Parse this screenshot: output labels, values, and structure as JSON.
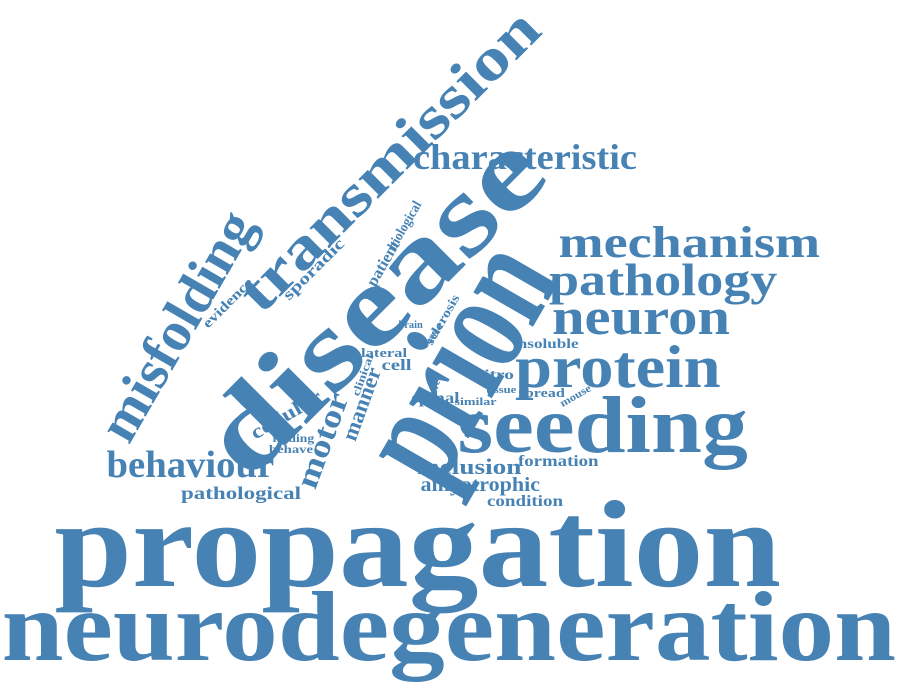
{
  "word_color": "#4682B4",
  "words": [
    {
      "id": "neurodegeneration",
      "text": "neurodegeneration"
    },
    {
      "id": "propagation",
      "text": "propagation"
    },
    {
      "id": "prion",
      "text": "prion"
    },
    {
      "id": "disease",
      "text": "disease"
    },
    {
      "id": "transmission",
      "text": "transmission"
    },
    {
      "id": "seeding",
      "text": "seeding"
    },
    {
      "id": "protein",
      "text": "protein"
    },
    {
      "id": "neuron",
      "text": "neuron"
    },
    {
      "id": "pathology",
      "text": "pathology"
    },
    {
      "id": "mechanism",
      "text": "mechanism"
    },
    {
      "id": "characteristic",
      "text": "characteristic"
    },
    {
      "id": "misfolding",
      "text": "misfolding"
    },
    {
      "id": "behaviour",
      "text": "behaviour"
    },
    {
      "id": "motor",
      "text": "motor"
    },
    {
      "id": "pathological",
      "text": "pathological"
    },
    {
      "id": "inclusion",
      "text": "inclusion"
    },
    {
      "id": "amyotrophic",
      "text": "amyotrophic"
    },
    {
      "id": "formation",
      "text": "formation"
    },
    {
      "id": "condition",
      "text": "condition"
    },
    {
      "id": "manner",
      "text": "manner"
    },
    {
      "id": "cellular",
      "text": "cellular"
    },
    {
      "id": "finding",
      "text": "finding"
    },
    {
      "id": "behave",
      "text": "behave"
    },
    {
      "id": "spinal",
      "text": "spinal"
    },
    {
      "id": "similar",
      "text": "similar"
    },
    {
      "id": "level",
      "text": "level"
    },
    {
      "id": "vitro",
      "text": "vitro"
    },
    {
      "id": "tissue",
      "text": "tissue"
    },
    {
      "id": "spread",
      "text": "spread"
    },
    {
      "id": "mouse",
      "text": "mouse"
    },
    {
      "id": "insoluble",
      "text": "insoluble"
    },
    {
      "id": "cell",
      "text": "cell"
    },
    {
      "id": "lateral",
      "text": "lateral"
    },
    {
      "id": "clinical",
      "text": "clinical"
    },
    {
      "id": "brain",
      "text": "brain"
    },
    {
      "id": "case",
      "text": "case"
    },
    {
      "id": "cord",
      "text": "cord"
    },
    {
      "id": "sclerosis",
      "text": "sclerosis"
    },
    {
      "id": "patient",
      "text": "patient"
    },
    {
      "id": "biological",
      "text": "biological"
    },
    {
      "id": "sporadic",
      "text": "sporadic"
    },
    {
      "id": "evidence",
      "text": "evidence"
    }
  ]
}
